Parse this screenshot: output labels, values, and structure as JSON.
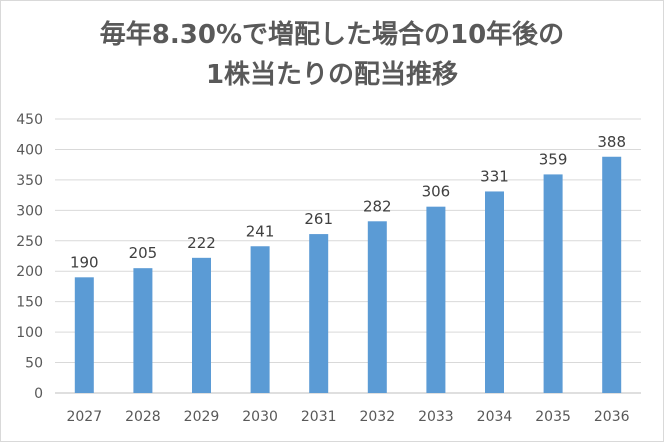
{
  "chart_data": {
    "type": "bar",
    "title": [
      "毎年8.30%で増配した場合の10年後の",
      "1株当たりの配当推移"
    ],
    "categories": [
      "2027",
      "2028",
      "2029",
      "2030",
      "2031",
      "2032",
      "2033",
      "2034",
      "2035",
      "2036"
    ],
    "values": [
      190,
      205,
      222,
      241,
      261,
      282,
      306,
      331,
      359,
      388
    ],
    "ylim": [
      0,
      450
    ],
    "yticks": [
      0,
      50,
      100,
      150,
      200,
      250,
      300,
      350,
      400,
      450
    ],
    "grid": true,
    "legend": "none",
    "colors": {
      "bar": "#5b9bd5"
    }
  }
}
